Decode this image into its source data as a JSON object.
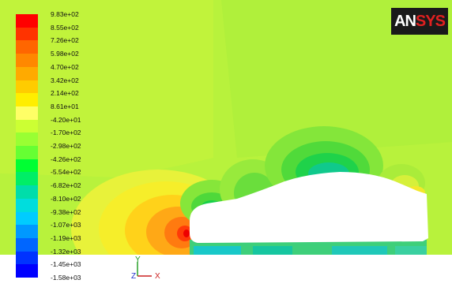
{
  "logo": {
    "text_main": "AN",
    "text_accent": "SYS",
    "name": "ANSYS"
  },
  "legend": {
    "labels": [
      "9.83e+02",
      "8.55e+02",
      "7.26e+02",
      "5.98e+02",
      "4.70e+02",
      "3.42e+02",
      "2.14e+02",
      "8.61e+01",
      "-4.20e+01",
      "-1.70e+02",
      "-2.98e+02",
      "-4.26e+02",
      "-5.54e+02",
      "-6.82e+02",
      "-8.10e+02",
      "-9.38e+02",
      "-1.07e+03",
      "-1.19e+03",
      "-1.32e+03",
      "-1.45e+03",
      "-1.58e+03"
    ],
    "colors": [
      "#ff0000",
      "#ff3300",
      "#ff6600",
      "#ff8800",
      "#ffaa00",
      "#ffcc00",
      "#ffee00",
      "#ffff66",
      "#ccff33",
      "#99ff33",
      "#66ff33",
      "#00ff33",
      "#00ee66",
      "#00ddaa",
      "#00dddd",
      "#00ccff",
      "#0099ff",
      "#0066ff",
      "#0033ff",
      "#0000ff"
    ]
  },
  "axis": {
    "y_label": "Y",
    "x_label": "X",
    "z_label": "Z"
  },
  "colors": {
    "field_base": "#b6f23a",
    "vehicle": "#ffffff"
  }
}
